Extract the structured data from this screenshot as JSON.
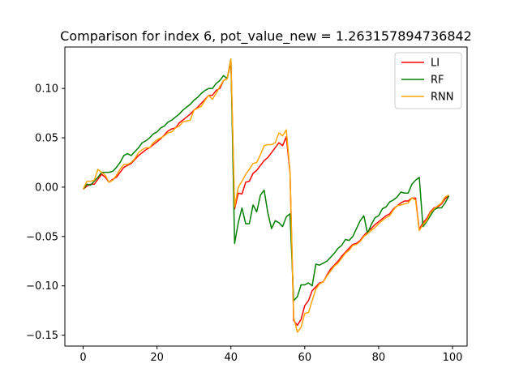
{
  "chart_data": {
    "type": "line",
    "title": "Comparison for index 6, pot_value_new = 1.263157894736842",
    "xlabel": "",
    "ylabel": "",
    "xlim": [
      -4.95,
      103.95
    ],
    "ylim": [
      -0.161,
      0.142
    ],
    "x_ticks": [
      0,
      20,
      40,
      60,
      80,
      100
    ],
    "x_tick_labels": [
      "0",
      "20",
      "40",
      "60",
      "80",
      "100"
    ],
    "y_ticks": [
      -0.15,
      -0.1,
      -0.05,
      0.0,
      0.05,
      0.1
    ],
    "y_tick_labels": [
      "−0.15",
      "−0.10",
      "−0.05",
      "0.00",
      "0.05",
      "0.10"
    ],
    "grid": false,
    "legend_position": "top-right",
    "x": [
      0,
      1,
      2,
      3,
      4,
      5,
      6,
      7,
      8,
      9,
      10,
      11,
      12,
      13,
      14,
      15,
      16,
      17,
      18,
      19,
      20,
      21,
      22,
      23,
      24,
      25,
      26,
      27,
      28,
      29,
      30,
      31,
      32,
      33,
      34,
      35,
      36,
      37,
      38,
      39,
      40,
      41,
      42,
      43,
      44,
      45,
      46,
      47,
      48,
      49,
      50,
      51,
      52,
      53,
      54,
      55,
      56,
      57,
      58,
      59,
      60,
      61,
      62,
      63,
      64,
      65,
      66,
      67,
      68,
      69,
      70,
      71,
      72,
      73,
      74,
      75,
      76,
      77,
      78,
      79,
      80,
      81,
      82,
      83,
      84,
      85,
      86,
      87,
      88,
      89,
      90,
      91,
      92,
      93,
      94,
      95,
      96,
      97,
      98,
      99
    ],
    "series": [
      {
        "name": "LI",
        "color": "#ff0000",
        "values": [
          -0.002,
          0.001,
          0.003,
          0.003,
          0.008,
          0.013,
          0.01,
          0.005,
          0.008,
          0.01,
          0.015,
          0.02,
          0.022,
          0.024,
          0.028,
          0.032,
          0.035,
          0.038,
          0.04,
          0.043,
          0.046,
          0.049,
          0.053,
          0.057,
          0.059,
          0.06,
          0.065,
          0.068,
          0.071,
          0.074,
          0.078,
          0.081,
          0.085,
          0.089,
          0.093,
          0.093,
          0.098,
          0.1,
          0.108,
          0.11,
          0.127,
          -0.022,
          -0.006,
          -0.007,
          0.005,
          0.006,
          0.014,
          0.017,
          0.022,
          0.027,
          0.03,
          0.035,
          0.04,
          0.045,
          0.042,
          0.051,
          0.015,
          -0.135,
          -0.14,
          -0.134,
          -0.12,
          -0.115,
          -0.105,
          -0.101,
          -0.097,
          -0.096,
          -0.089,
          -0.083,
          -0.079,
          -0.075,
          -0.07,
          -0.066,
          -0.062,
          -0.058,
          -0.057,
          -0.054,
          -0.049,
          -0.045,
          -0.042,
          -0.038,
          -0.035,
          -0.032,
          -0.029,
          -0.027,
          -0.022,
          -0.019,
          -0.016,
          -0.014,
          -0.014,
          -0.011,
          -0.011,
          -0.043,
          -0.036,
          -0.032,
          -0.025,
          -0.021,
          -0.02,
          -0.017,
          -0.012,
          -0.008
        ]
      },
      {
        "name": "RF",
        "color": "#008000",
        "values": [
          -0.002,
          0.003,
          0.002,
          0.006,
          0.01,
          0.015,
          0.015,
          0.015,
          0.016,
          0.02,
          0.025,
          0.032,
          0.034,
          0.032,
          0.036,
          0.04,
          0.045,
          0.047,
          0.05,
          0.054,
          0.056,
          0.06,
          0.062,
          0.066,
          0.068,
          0.071,
          0.074,
          0.078,
          0.081,
          0.084,
          0.088,
          0.091,
          0.095,
          0.098,
          0.1,
          0.1,
          0.105,
          0.108,
          0.113,
          0.11,
          0.13,
          -0.057,
          -0.036,
          -0.021,
          -0.037,
          -0.037,
          -0.018,
          -0.025,
          -0.008,
          -0.003,
          -0.026,
          -0.042,
          -0.034,
          -0.036,
          -0.04,
          -0.03,
          -0.027,
          -0.115,
          -0.111,
          -0.099,
          -0.099,
          -0.097,
          -0.1,
          -0.078,
          -0.079,
          -0.077,
          -0.075,
          -0.071,
          -0.067,
          -0.062,
          -0.059,
          -0.053,
          -0.054,
          -0.05,
          -0.042,
          -0.034,
          -0.029,
          -0.047,
          -0.038,
          -0.031,
          -0.029,
          -0.022,
          -0.02,
          -0.015,
          -0.013,
          -0.01,
          -0.005,
          -0.006,
          -0.006,
          0.003,
          0.007,
          0.01,
          -0.04,
          -0.035,
          -0.029,
          -0.023,
          -0.021,
          -0.021,
          -0.016,
          -0.009
        ]
      },
      {
        "name": "RNN",
        "color": "#ffa500",
        "values": [
          -0.002,
          0.006,
          0.006,
          0.007,
          0.018,
          0.015,
          0.012,
          0.005,
          0.007,
          0.012,
          0.018,
          0.023,
          0.023,
          0.025,
          0.029,
          0.035,
          0.038,
          0.04,
          0.04,
          0.045,
          0.048,
          0.05,
          0.052,
          0.055,
          0.056,
          0.06,
          0.062,
          0.066,
          0.067,
          0.068,
          0.078,
          0.08,
          0.082,
          0.088,
          0.093,
          0.089,
          0.095,
          0.102,
          0.108,
          0.11,
          0.13,
          -0.02,
          0.0,
          0.006,
          0.013,
          0.018,
          0.024,
          0.025,
          0.033,
          0.042,
          0.043,
          0.043,
          0.045,
          0.055,
          0.052,
          0.058,
          0.016,
          -0.132,
          -0.147,
          -0.142,
          -0.128,
          -0.127,
          -0.115,
          -0.103,
          -0.098,
          -0.096,
          -0.09,
          -0.085,
          -0.08,
          -0.077,
          -0.072,
          -0.067,
          -0.064,
          -0.059,
          -0.058,
          -0.055,
          -0.05,
          -0.047,
          -0.044,
          -0.041,
          -0.037,
          -0.034,
          -0.031,
          -0.029,
          -0.023,
          -0.019,
          -0.018,
          -0.017,
          -0.016,
          -0.011,
          -0.013,
          -0.044,
          -0.038,
          -0.034,
          -0.026,
          -0.022,
          -0.019,
          -0.016,
          -0.01,
          -0.008
        ]
      }
    ]
  }
}
